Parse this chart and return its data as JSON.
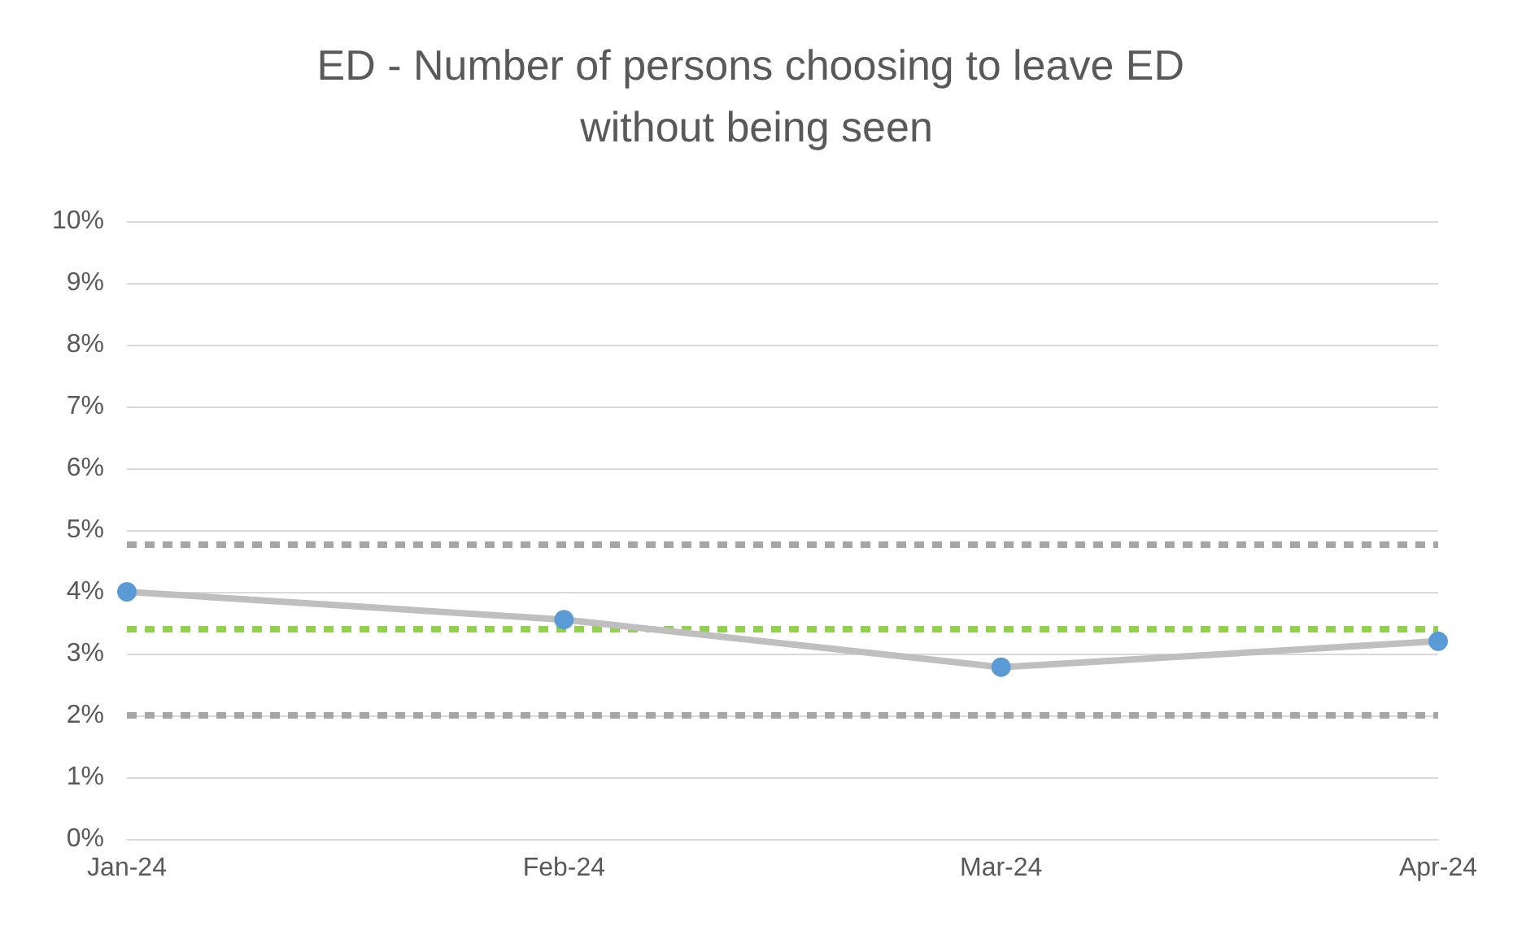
{
  "chart_data": {
    "type": "line",
    "title": "ED - Number of persons choosing to leave ED without being seen",
    "categories": [
      "Jan-24",
      "Feb-24",
      "Mar-24",
      "Apr-24"
    ],
    "series": [
      {
        "color": "#bfbfbf",
        "colors": [
          "#5b9bd5",
          "#5b9bd5",
          "#5b9bd5",
          "#5b9bd5"
        ],
        "values": [
          4.0,
          3.55,
          2.78,
          3.2
        ]
      }
    ],
    "marker": "circle",
    "line_style": "solid",
    "ylim": [
      0,
      10
    ],
    "yticks": [
      {
        "value": 0,
        "label": "0%"
      },
      {
        "value": 1,
        "label": "1%"
      },
      {
        "value": 2,
        "label": "2%"
      },
      {
        "value": 3,
        "label": "3%"
      },
      {
        "value": 4,
        "label": "4%"
      },
      {
        "value": 5,
        "label": "5%"
      },
      {
        "value": 6,
        "label": "6%"
      },
      {
        "value": 7,
        "label": "7%"
      },
      {
        "value": 8,
        "label": "8%"
      },
      {
        "value": 9,
        "label": "9%"
      },
      {
        "value": 10,
        "label": "10%"
      }
    ],
    "grid": "y",
    "ref_lines": [
      {
        "axis": "y",
        "value": 4.78,
        "color": "#a6a6a6",
        "line_style": "dashed"
      },
      {
        "axis": "y",
        "value": 3.4,
        "color": "#92d050",
        "line_style": "dashed"
      },
      {
        "axis": "y",
        "value": 2.0,
        "color": "#a6a6a6",
        "line_style": "dashed"
      }
    ]
  }
}
